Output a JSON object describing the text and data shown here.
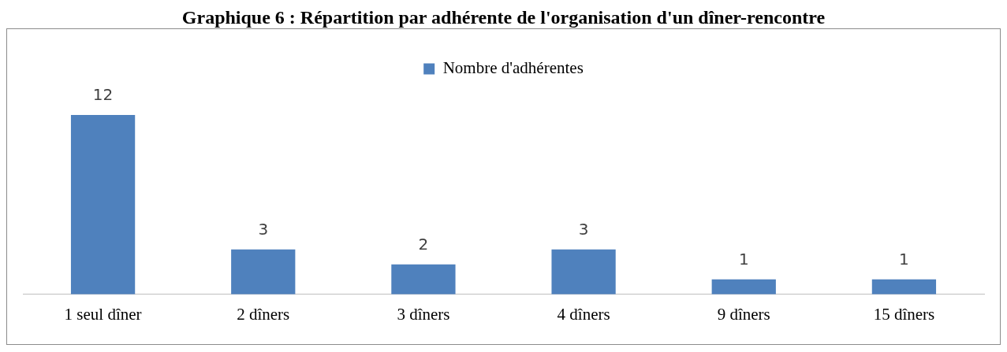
{
  "chart_data": {
    "type": "bar",
    "title": "Graphique 6 : Répartition par adhérente de l'organisation d'un dîner-rencontre",
    "categories": [
      "1 seul dîner",
      "2 dîners",
      "3 dîners",
      "4 dîners",
      "9 dîners",
      "15 dîners"
    ],
    "series": [
      {
        "name": "Nombre d'adhérentes",
        "color": "#4f81bd",
        "values": [
          12,
          3,
          2,
          3,
          1,
          1
        ]
      }
    ],
    "data_labels": true,
    "legend": "top",
    "grid": false,
    "tick_labels": "x"
  }
}
